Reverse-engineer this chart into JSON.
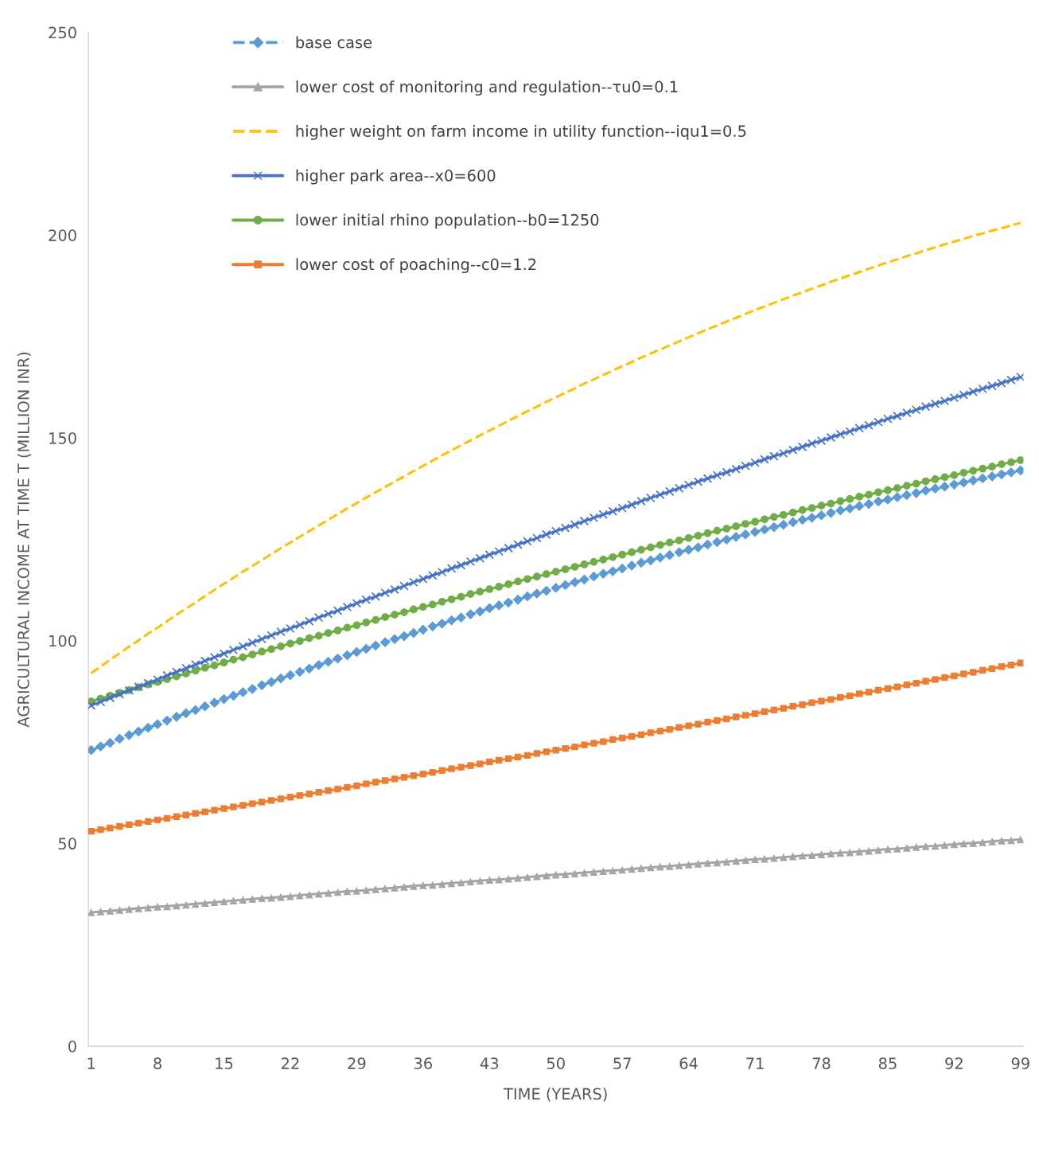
{
  "chart_data": {
    "type": "line",
    "xlabel": "TIME (YEARS)",
    "ylabel": "AGRICULTURAL INCOME AT TIME T (MILLION INR)",
    "ylim": [
      0,
      250
    ],
    "yticks": [
      0,
      50,
      100,
      150,
      200,
      250
    ],
    "grid": false,
    "legend": "top left",
    "categories": [
      "1",
      null,
      null,
      null,
      null,
      null,
      null,
      "8",
      null,
      null,
      null,
      null,
      null,
      null,
      "15",
      null,
      null,
      null,
      null,
      null,
      null,
      "22",
      null,
      null,
      null,
      null,
      null,
      null,
      "29",
      null,
      null,
      null,
      null,
      null,
      null,
      "36",
      null,
      null,
      null,
      null,
      null,
      null,
      "43",
      null,
      null,
      null,
      null,
      null,
      null,
      "50",
      null,
      null,
      null,
      null,
      null,
      null,
      "57",
      null,
      null,
      null,
      null,
      null,
      null,
      "64",
      null,
      null,
      null,
      null,
      null,
      null,
      "71",
      null,
      null,
      null,
      null,
      null,
      null,
      "78",
      null,
      null,
      null,
      null,
      null,
      null,
      "85",
      null,
      null,
      null,
      null,
      null,
      null,
      "92",
      null,
      null,
      null,
      null,
      null,
      null,
      "99"
    ],
    "series": [
      {
        "name": "base case",
        "color": "#5b9bd5",
        "line_style": "dashed",
        "marker": "diamond",
        "values": [
          73.0,
          73.9,
          74.8,
          75.8,
          76.7,
          77.6,
          78.5,
          79.4,
          80.3,
          81.2,
          82.1,
          82.9,
          83.8,
          84.7,
          85.6,
          86.4,
          87.3,
          88.1,
          89.0,
          89.8,
          90.7,
          91.5,
          92.3,
          93.1,
          94.0,
          94.8,
          95.6,
          96.4,
          97.2,
          98.0,
          98.8,
          99.6,
          100.4,
          101.1,
          101.9,
          102.7,
          103.5,
          104.2,
          105.0,
          105.7,
          106.5,
          107.2,
          108.0,
          108.7,
          109.4,
          110.1,
          110.9,
          111.6,
          112.3,
          113.0,
          113.7,
          114.4,
          115.1,
          115.8,
          116.5,
          117.1,
          117.8,
          118.5,
          119.2,
          119.8,
          120.5,
          121.1,
          121.8,
          122.4,
          123.0,
          123.7,
          124.3,
          124.9,
          125.6,
          126.2,
          126.8,
          127.4,
          128.0,
          128.6,
          129.2,
          129.8,
          130.3,
          130.9,
          131.5,
          132.1,
          132.6,
          133.2,
          133.7,
          134.3,
          134.8,
          135.4,
          135.9,
          136.4,
          137.0,
          137.5,
          138.0,
          138.5,
          139.0,
          139.5,
          140.0,
          140.5,
          141.0,
          141.5,
          142.0
        ]
      },
      {
        "name": "lower cost of monitoring and regulation--τu0=0.1",
        "color": "#a5a5a5",
        "line_style": "solid",
        "marker": "triangle",
        "values": [
          33.0,
          33.2,
          33.4,
          33.6,
          33.8,
          34.0,
          34.2,
          34.4,
          34.5,
          34.7,
          34.9,
          35.1,
          35.3,
          35.5,
          35.7,
          35.9,
          36.1,
          36.3,
          36.5,
          36.6,
          36.8,
          37.0,
          37.2,
          37.4,
          37.6,
          37.8,
          38.0,
          38.2,
          38.3,
          38.5,
          38.7,
          38.9,
          39.1,
          39.3,
          39.5,
          39.7,
          39.8,
          40.0,
          40.2,
          40.4,
          40.6,
          40.8,
          41.0,
          41.1,
          41.3,
          41.5,
          41.7,
          41.9,
          42.1,
          42.3,
          42.4,
          42.6,
          42.8,
          43.0,
          43.2,
          43.3,
          43.5,
          43.7,
          43.9,
          44.1,
          44.3,
          44.4,
          44.6,
          44.8,
          45.0,
          45.2,
          45.3,
          45.5,
          45.7,
          45.9,
          46.1,
          46.2,
          46.4,
          46.6,
          46.8,
          47.0,
          47.1,
          47.3,
          47.5,
          47.7,
          47.8,
          48.0,
          48.2,
          48.4,
          48.6,
          48.7,
          48.9,
          49.1,
          49.3,
          49.4,
          49.6,
          49.8,
          50.0,
          50.1,
          50.3,
          50.5,
          50.7,
          50.8,
          51.0
        ]
      },
      {
        "name": "higher weight on farm income in utility function--iqu1=0.5",
        "color": "#ffc000",
        "line_style": "dashed",
        "marker": "none",
        "values": [
          92.0,
          93.6,
          95.3,
          96.9,
          98.5,
          100.1,
          101.7,
          103.2,
          104.8,
          106.4,
          107.9,
          109.4,
          111.0,
          112.5,
          114.0,
          115.5,
          117.0,
          118.4,
          119.9,
          121.3,
          122.8,
          124.2,
          125.6,
          127.0,
          128.4,
          129.8,
          131.2,
          132.6,
          133.9,
          135.3,
          136.6,
          137.9,
          139.2,
          140.5,
          141.8,
          143.1,
          144.4,
          145.7,
          146.9,
          148.2,
          149.4,
          150.6,
          151.8,
          153.0,
          154.2,
          155.4,
          156.6,
          157.7,
          158.9,
          160.0,
          161.1,
          162.2,
          163.4,
          164.4,
          165.5,
          166.6,
          167.7,
          168.7,
          169.8,
          170.8,
          171.8,
          172.8,
          173.8,
          174.8,
          175.8,
          176.8,
          177.7,
          178.7,
          179.6,
          180.6,
          181.5,
          182.4,
          183.3,
          184.2,
          185.1,
          185.9,
          186.8,
          187.6,
          188.5,
          189.3,
          190.1,
          190.9,
          191.7,
          192.5,
          193.3,
          194.0,
          194.8,
          195.5,
          196.3,
          197.0,
          197.7,
          198.4,
          199.1,
          199.8,
          200.4,
          201.1,
          201.7,
          202.4,
          203.0
        ]
      },
      {
        "name": "higher park area--x0=600",
        "color": "#4472c4",
        "line_style": "solid",
        "marker": "cross",
        "values": [
          84.0,
          84.9,
          85.9,
          86.8,
          87.7,
          88.6,
          89.5,
          90.4,
          91.4,
          92.3,
          93.2,
          94.1,
          95.0,
          95.9,
          96.8,
          97.7,
          98.6,
          99.5,
          100.4,
          101.3,
          102.2,
          103.0,
          103.9,
          104.8,
          105.7,
          106.6,
          107.4,
          108.3,
          109.2,
          110.1,
          110.9,
          111.8,
          112.6,
          113.5,
          114.4,
          115.2,
          116.1,
          116.9,
          117.8,
          118.6,
          119.5,
          120.3,
          121.2,
          122.0,
          122.8,
          123.7,
          124.5,
          125.3,
          126.2,
          127.0,
          127.8,
          128.6,
          129.5,
          130.3,
          131.1,
          131.9,
          132.7,
          133.5,
          134.4,
          135.2,
          136.0,
          136.8,
          137.6,
          138.4,
          139.2,
          140.0,
          140.8,
          141.5,
          142.3,
          143.1,
          143.9,
          144.7,
          145.5,
          146.2,
          147.0,
          147.8,
          148.6,
          149.3,
          150.1,
          150.9,
          151.6,
          152.4,
          153.1,
          153.9,
          154.7,
          155.4,
          156.2,
          156.9,
          157.7,
          158.4,
          159.1,
          159.9,
          160.6,
          161.4,
          162.1,
          162.8,
          163.5,
          164.3,
          165.0
        ]
      },
      {
        "name": "lower initial rhino population--b0=1250",
        "color": "#70ad47",
        "line_style": "solid",
        "marker": "circle",
        "values": [
          85.0,
          85.7,
          86.4,
          87.1,
          87.8,
          88.5,
          89.2,
          89.8,
          90.5,
          91.2,
          91.9,
          92.6,
          93.3,
          93.9,
          94.6,
          95.3,
          95.9,
          96.6,
          97.3,
          97.9,
          98.6,
          99.3,
          99.9,
          100.6,
          101.2,
          101.9,
          102.5,
          103.2,
          103.8,
          104.5,
          105.1,
          105.8,
          106.4,
          107.0,
          107.7,
          108.3,
          108.9,
          109.6,
          110.2,
          110.8,
          111.5,
          112.1,
          112.7,
          113.3,
          113.9,
          114.6,
          115.2,
          115.8,
          116.4,
          117.0,
          117.6,
          118.2,
          118.8,
          119.4,
          120.0,
          120.6,
          121.2,
          121.8,
          122.4,
          123.0,
          123.6,
          124.2,
          124.7,
          125.3,
          125.9,
          126.5,
          127.1,
          127.6,
          128.2,
          128.8,
          129.3,
          129.9,
          130.5,
          131.0,
          131.6,
          132.2,
          132.7,
          133.3,
          133.8,
          134.4,
          134.9,
          135.5,
          136.0,
          136.6,
          137.1,
          137.6,
          138.2,
          138.7,
          139.3,
          139.8,
          140.3,
          140.8,
          141.4,
          141.9,
          142.4,
          142.9,
          143.5,
          144.0,
          144.5
        ]
      },
      {
        "name": "lower cost of poaching--c0=1.2",
        "color": "#ed7d31",
        "line_style": "solid",
        "marker": "square",
        "values": [
          53.0,
          53.4,
          53.8,
          54.2,
          54.6,
          55.0,
          55.4,
          55.8,
          56.2,
          56.6,
          57.0,
          57.4,
          57.8,
          58.2,
          58.6,
          59.0,
          59.4,
          59.8,
          60.2,
          60.6,
          61.0,
          61.4,
          61.8,
          62.2,
          62.6,
          63.0,
          63.4,
          63.8,
          64.2,
          64.7,
          65.1,
          65.5,
          65.9,
          66.3,
          66.7,
          67.1,
          67.5,
          68.0,
          68.4,
          68.8,
          69.2,
          69.6,
          70.1,
          70.5,
          70.9,
          71.3,
          71.7,
          72.2,
          72.6,
          73.0,
          73.4,
          73.8,
          74.3,
          74.7,
          75.1,
          75.6,
          76.0,
          76.4,
          76.8,
          77.3,
          77.7,
          78.1,
          78.6,
          79.0,
          79.4,
          79.9,
          80.3,
          80.7,
          81.2,
          81.6,
          82.0,
          82.5,
          82.9,
          83.3,
          83.8,
          84.2,
          84.7,
          85.1,
          85.5,
          86.0,
          86.4,
          86.9,
          87.3,
          87.8,
          88.2,
          88.6,
          89.1,
          89.5,
          90.0,
          90.4,
          90.9,
          91.3,
          91.8,
          92.2,
          92.7,
          93.1,
          93.6,
          94.0,
          94.5
        ]
      }
    ]
  }
}
